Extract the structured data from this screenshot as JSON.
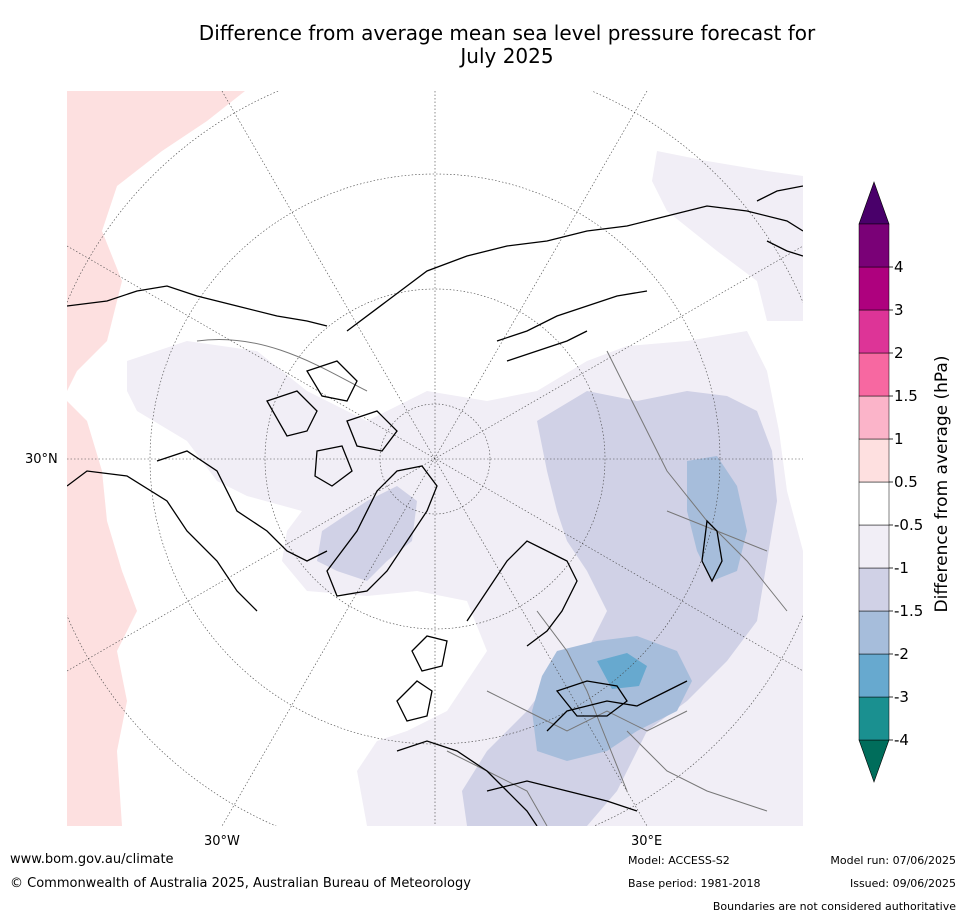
{
  "title": {
    "line1": "Difference from average mean sea level pressure forecast for",
    "line2": "July 2025"
  },
  "map": {
    "projection": "north polar stereographic",
    "lat_label": "30°N",
    "lon_labels": [
      "30°W",
      "30°E"
    ]
  },
  "colorbar": {
    "label": "Difference from average (hPa)",
    "ticks": [
      "-4",
      "-3",
      "-2",
      "-1.5",
      "-1",
      "-0.5",
      "0.5",
      "1",
      "1.5",
      "2",
      "3",
      "4"
    ],
    "colors": [
      "#1a9090",
      "#67a9cf",
      "#a6bddb",
      "#d0d1e6",
      "#f1eef6",
      "#ffffff",
      "#fee0e0",
      "#fbb4c9",
      "#f768a1",
      "#dd3497",
      "#ae017e",
      "#7a0177"
    ],
    "under_color": "#006d5b",
    "over_color": "#49006a"
  },
  "footer": {
    "website": "www.bom.gov.au/climate",
    "copyright": "© Commonwealth of Australia 2025, Australian Bureau of Meteorology",
    "model": "Model: ACCESS-S2",
    "base_period": "Base period: 1981-2018",
    "model_run": "Model run: 07/06/2025",
    "issued": "Issued: 09/06/2025",
    "disclaimer": "Boundaries are not considered authoritative"
  }
}
